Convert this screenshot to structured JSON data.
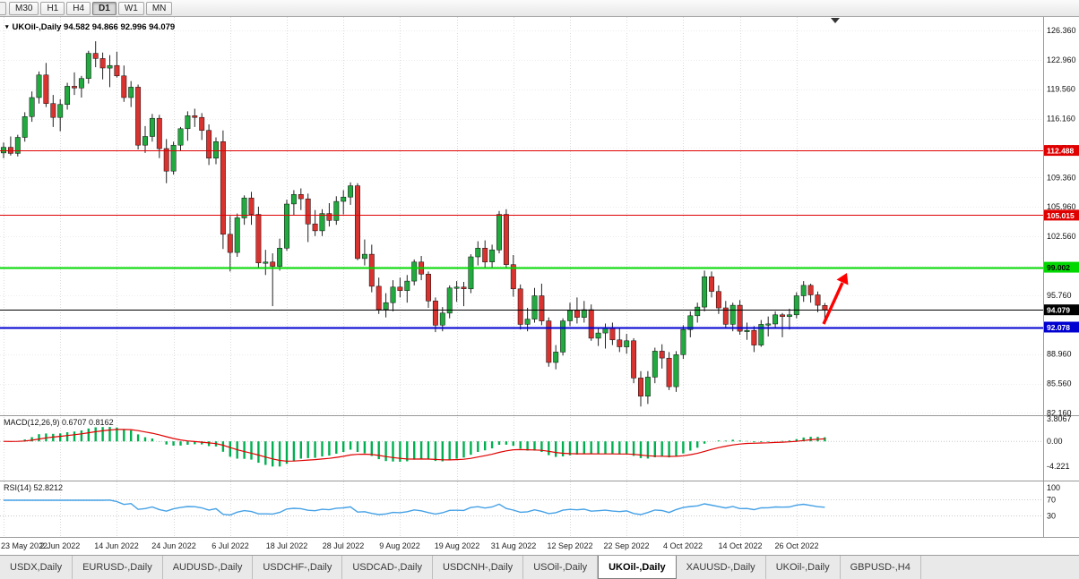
{
  "toolbar": {
    "timeframes": [
      "M30",
      "H1",
      "H4",
      "D1",
      "W1",
      "MN"
    ],
    "active": "D1"
  },
  "chart": {
    "symbol": "UKOil-,Daily",
    "title": "UKOil-,Daily 94.582 94.866 92.996 94.079"
  },
  "indicators": {
    "macd": {
      "label": "MACD(12,26,9) 0.6707 0.8162",
      "params": [
        12,
        26,
        9
      ],
      "value_main": "0.6707",
      "value_signal": "0.8162",
      "axis_ticks": [
        3.8067,
        0,
        -4.221
      ],
      "axis_labels": [
        "3.8067",
        "0.00",
        "-4.221"
      ]
    },
    "rsi": {
      "label": "RSI(14) 52.8212",
      "period": 14,
      "value": "52.8212",
      "axis_labels": [
        "100",
        "70",
        "30"
      ],
      "levels": [
        70,
        30
      ]
    }
  },
  "colors": {
    "up": "#22a93f",
    "down": "#d8332f",
    "wick": "#222222",
    "macd_hist": "#00b050",
    "macd_signal": "#e00000",
    "rsi_line": "#45a1e6",
    "grid": "#dadada",
    "arrow": "#ff0000"
  },
  "chart_data": {
    "type": "candlestick",
    "symbol": "UKOil-,Daily",
    "timeframe": "Daily",
    "last_ohlc": {
      "open": 94.582,
      "high": 94.866,
      "low": 92.996,
      "close": 94.079
    },
    "ylim": [
      81.9,
      127.9
    ],
    "y_tick_labels": [
      "126.360",
      "122.960",
      "119.560",
      "116.160",
      "112.760",
      "109.360",
      "105.960",
      "102.560",
      "99.160",
      "95.760",
      "92.360",
      "88.960",
      "85.560",
      "82.160"
    ],
    "x_tick_labels": [
      "23 May 2022",
      "2 Jun 2022",
      "14 Jun 2022",
      "24 Jun 2022",
      "6 Jul 2022",
      "18 Jul 2022",
      "28 Jul 2022",
      "9 Aug 2022",
      "19 Aug 2022",
      "31 Aug 2022",
      "12 Sep 2022",
      "22 Sep 2022",
      "4 Oct 2022",
      "14 Oct 2022",
      "26 Oct 2022"
    ],
    "x_tick_bar_indices": [
      0,
      8,
      16,
      24,
      32,
      40,
      48,
      56,
      64,
      72,
      80,
      88,
      96,
      104,
      112
    ],
    "horizontal_lines": [
      {
        "price": 112.488,
        "label": "112.488",
        "color": "#e00000",
        "text_color": "#ffffff",
        "width": 1
      },
      {
        "price": 105.015,
        "label": "105.015",
        "color": "#e00000",
        "text_color": "#ffffff",
        "width": 1
      },
      {
        "price": 99.002,
        "label": "99.002",
        "color": "#00d800",
        "text_color": "#000000",
        "width": 2
      },
      {
        "price": 94.079,
        "label": "94.079",
        "color": "#000000",
        "text_color": "#ffffff",
        "width": 1
      },
      {
        "price": 92.078,
        "label": "92.078",
        "color": "#0000d0",
        "text_color": "#ffffff",
        "width": 2
      }
    ],
    "annotations": [
      {
        "type": "up-arrow",
        "color": "#ff0000"
      }
    ],
    "subpanels": [
      {
        "type": "macd",
        "params": [
          12,
          26,
          9
        ],
        "ylim": [
          -6.6,
          4.4
        ],
        "ticks": [
          3.8067,
          0,
          -4.221
        ],
        "last_main": 0.6707,
        "last_signal": 0.8162,
        "derived": "computed from ohlc closes"
      },
      {
        "type": "rsi",
        "period": 14,
        "ylim": [
          0,
          100
        ],
        "ticks": [
          100,
          70,
          30
        ],
        "last": 52.8212,
        "derived": "computed from ohlc closes"
      }
    ],
    "ohlc": [
      [
        112.2,
        113.4,
        111.6,
        112.85
      ],
      [
        112.85,
        114.1,
        111.9,
        112.15
      ],
      [
        112.15,
        114.3,
        111.8,
        114.0
      ],
      [
        114.0,
        116.9,
        113.5,
        116.4
      ],
      [
        116.4,
        119.3,
        115.8,
        118.6
      ],
      [
        118.6,
        121.6,
        117.9,
        121.2
      ],
      [
        121.2,
        122.6,
        117.5,
        117.9
      ],
      [
        117.9,
        118.9,
        115.2,
        116.3
      ],
      [
        116.3,
        118.4,
        114.7,
        117.8
      ],
      [
        117.8,
        120.3,
        117.2,
        119.9
      ],
      [
        119.9,
        121.5,
        118.9,
        119.7
      ],
      [
        119.7,
        121.1,
        118.6,
        120.8
      ],
      [
        120.8,
        124.0,
        120.2,
        123.7
      ],
      [
        123.7,
        125.1,
        122.1,
        123.1
      ],
      [
        123.1,
        123.8,
        120.7,
        122.0
      ],
      [
        122.0,
        123.5,
        119.8,
        122.3
      ],
      [
        122.3,
        123.9,
        120.9,
        121.1
      ],
      [
        121.1,
        122.3,
        118.1,
        118.6
      ],
      [
        118.6,
        120.5,
        117.5,
        119.8
      ],
      [
        119.8,
        120.1,
        112.6,
        113.1
      ],
      [
        113.1,
        115.3,
        112.2,
        114.1
      ],
      [
        114.1,
        116.7,
        113.5,
        116.2
      ],
      [
        116.2,
        116.6,
        111.6,
        112.7
      ],
      [
        112.7,
        113.8,
        108.7,
        110.1
      ],
      [
        110.1,
        113.5,
        109.7,
        113.1
      ],
      [
        113.1,
        115.2,
        112.4,
        115.0
      ],
      [
        115.0,
        117.0,
        113.6,
        116.5
      ],
      [
        116.5,
        117.3,
        115.2,
        116.3
      ],
      [
        116.3,
        116.8,
        113.7,
        114.8
      ],
      [
        114.8,
        115.5,
        110.8,
        111.6
      ],
      [
        111.6,
        114.0,
        110.9,
        113.5
      ],
      [
        113.5,
        114.8,
        101.1,
        102.8
      ],
      [
        102.8,
        104.9,
        98.5,
        100.7
      ],
      [
        100.7,
        105.2,
        100.2,
        104.7
      ],
      [
        104.7,
        107.3,
        103.9,
        107.0
      ],
      [
        107.0,
        107.7,
        103.9,
        105.1
      ],
      [
        105.1,
        106.0,
        98.9,
        99.5
      ],
      [
        99.5,
        101.0,
        98.1,
        99.6
      ],
      [
        99.6,
        100.6,
        94.5,
        99.1
      ],
      [
        99.1,
        102.3,
        98.6,
        101.2
      ],
      [
        101.2,
        106.8,
        100.9,
        106.3
      ],
      [
        106.3,
        107.9,
        105.0,
        107.4
      ],
      [
        107.4,
        108.1,
        105.6,
        106.9
      ],
      [
        106.9,
        107.5,
        101.9,
        104.0
      ],
      [
        104.0,
        105.6,
        102.6,
        103.2
      ],
      [
        103.2,
        105.7,
        102.6,
        105.2
      ],
      [
        105.2,
        106.4,
        103.7,
        104.4
      ],
      [
        104.4,
        107.2,
        103.9,
        106.6
      ],
      [
        106.6,
        107.9,
        105.1,
        107.1
      ],
      [
        107.1,
        108.8,
        106.2,
        108.4
      ],
      [
        108.4,
        108.7,
        99.8,
        100.0
      ],
      [
        100.0,
        102.2,
        99.2,
        100.5
      ],
      [
        100.5,
        101.6,
        96.1,
        96.8
      ],
      [
        96.8,
        97.8,
        93.6,
        94.1
      ],
      [
        94.1,
        96.0,
        93.2,
        94.9
      ],
      [
        94.9,
        97.5,
        93.9,
        96.7
      ],
      [
        96.7,
        97.8,
        95.5,
        96.3
      ],
      [
        96.3,
        98.1,
        94.9,
        97.4
      ],
      [
        97.4,
        99.9,
        96.9,
        99.6
      ],
      [
        99.6,
        100.3,
        97.5,
        98.2
      ],
      [
        98.2,
        98.5,
        94.3,
        95.1
      ],
      [
        95.1,
        95.5,
        91.5,
        92.3
      ],
      [
        92.3,
        94.4,
        91.6,
        93.7
      ],
      [
        93.7,
        96.9,
        93.1,
        96.6
      ],
      [
        96.6,
        97.4,
        95.0,
        96.7
      ],
      [
        96.7,
        97.3,
        94.5,
        96.5
      ],
      [
        96.5,
        100.5,
        96.0,
        100.2
      ],
      [
        100.2,
        102.0,
        99.2,
        101.2
      ],
      [
        101.2,
        102.1,
        98.9,
        99.6
      ],
      [
        99.6,
        101.6,
        98.8,
        101.0
      ],
      [
        101.0,
        105.5,
        100.6,
        105.1
      ],
      [
        105.1,
        105.7,
        98.9,
        99.3
      ],
      [
        99.3,
        100.4,
        95.6,
        96.5
      ],
      [
        96.5,
        97.0,
        91.8,
        92.4
      ],
      [
        92.4,
        94.3,
        91.6,
        93.0
      ],
      [
        93.0,
        96.6,
        92.6,
        95.7
      ],
      [
        95.7,
        97.1,
        92.3,
        92.8
      ],
      [
        92.8,
        93.2,
        87.5,
        88.0
      ],
      [
        88.0,
        90.0,
        87.2,
        89.2
      ],
      [
        89.2,
        93.1,
        88.8,
        92.8
      ],
      [
        92.8,
        94.9,
        92.2,
        94.0
      ],
      [
        94.0,
        95.5,
        92.5,
        93.2
      ],
      [
        93.2,
        95.1,
        92.6,
        94.1
      ],
      [
        94.1,
        94.7,
        90.5,
        90.8
      ],
      [
        90.8,
        92.0,
        89.9,
        91.4
      ],
      [
        91.4,
        92.5,
        89.6,
        92.0
      ],
      [
        92.0,
        92.6,
        90.0,
        90.6
      ],
      [
        90.6,
        91.9,
        89.2,
        89.8
      ],
      [
        89.8,
        91.3,
        89.0,
        90.5
      ],
      [
        90.5,
        90.8,
        85.6,
        86.2
      ],
      [
        86.2,
        87.0,
        82.9,
        84.1
      ],
      [
        84.1,
        87.0,
        83.2,
        86.3
      ],
      [
        86.3,
        89.7,
        85.6,
        89.3
      ],
      [
        89.3,
        90.1,
        87.3,
        88.5
      ],
      [
        88.5,
        89.2,
        84.8,
        85.2
      ],
      [
        85.2,
        89.3,
        84.6,
        88.9
      ],
      [
        88.9,
        92.3,
        88.4,
        91.8
      ],
      [
        91.8,
        93.9,
        90.9,
        93.4
      ],
      [
        93.4,
        94.9,
        92.6,
        94.4
      ],
      [
        94.4,
        98.6,
        93.9,
        97.9
      ],
      [
        97.9,
        98.5,
        95.5,
        96.2
      ],
      [
        96.2,
        96.9,
        93.6,
        94.3
      ],
      [
        94.3,
        95.1,
        91.9,
        92.4
      ],
      [
        92.4,
        94.9,
        91.6,
        94.6
      ],
      [
        94.6,
        95.2,
        91.2,
        91.6
      ],
      [
        91.6,
        92.6,
        90.6,
        91.7
      ],
      [
        91.7,
        92.2,
        89.2,
        90.0
      ],
      [
        90.0,
        92.9,
        89.8,
        92.4
      ],
      [
        92.4,
        93.3,
        91.0,
        92.45
      ],
      [
        92.45,
        93.9,
        91.9,
        93.5
      ],
      [
        93.5,
        93.7,
        90.9,
        93.3
      ],
      [
        93.3,
        94.2,
        91.8,
        93.5
      ],
      [
        93.5,
        96.1,
        93.1,
        95.7
      ],
      [
        95.7,
        97.4,
        95.0,
        96.9
      ],
      [
        96.9,
        97.1,
        94.9,
        95.8
      ],
      [
        95.8,
        96.2,
        93.8,
        94.6
      ],
      [
        94.582,
        94.866,
        92.996,
        94.079
      ]
    ]
  },
  "tabs": {
    "items": [
      "USDX,Daily",
      "EURUSD-,Daily",
      "AUDUSD-,Daily",
      "USDCHF-,Daily",
      "USDCAD-,Daily",
      "USDCNH-,Daily",
      "USOil-,Daily",
      "UKOil-,Daily",
      "XAUUSD-,Daily",
      "UKOil-,Daily",
      "GBPUSD-,H4"
    ],
    "active_index": 7
  }
}
